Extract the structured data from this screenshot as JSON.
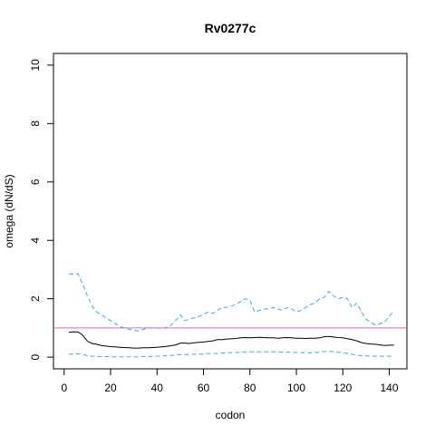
{
  "chart_data": {
    "type": "line",
    "title": "Rv0277c",
    "xlabel": "codon",
    "ylabel": "omega (dN/dS)",
    "xlim": [
      -4.6,
      147.6
    ],
    "ylim": [
      -0.4,
      10.4
    ],
    "x_ticks": [
      0,
      20,
      40,
      60,
      80,
      100,
      120,
      140
    ],
    "y_ticks": [
      0,
      2,
      4,
      6,
      8,
      10
    ],
    "reference_line": {
      "y": 1,
      "color": "#d46ad4"
    },
    "grid": false,
    "legend": "none",
    "series": [
      {
        "style": "solid",
        "color": "#000000",
        "x": [
          2,
          4,
          6,
          8,
          10,
          12,
          14,
          16,
          18,
          20,
          22,
          24,
          26,
          28,
          30,
          32,
          34,
          36,
          38,
          40,
          42,
          44,
          46,
          48,
          50,
          52,
          54,
          56,
          58,
          60,
          62,
          64,
          66,
          68,
          70,
          72,
          74,
          76,
          78,
          80,
          82,
          84,
          86,
          88,
          90,
          92,
          94,
          96,
          98,
          100,
          102,
          104,
          106,
          108,
          110,
          112,
          114,
          116,
          118,
          120,
          122,
          124,
          126,
          128,
          130,
          132,
          134,
          136,
          138,
          140,
          142
        ],
        "y": [
          0.85,
          0.87,
          0.86,
          0.75,
          0.55,
          0.47,
          0.44,
          0.4,
          0.38,
          0.36,
          0.35,
          0.34,
          0.33,
          0.32,
          0.31,
          0.31,
          0.32,
          0.32,
          0.33,
          0.34,
          0.35,
          0.37,
          0.39,
          0.42,
          0.48,
          0.48,
          0.47,
          0.49,
          0.51,
          0.52,
          0.54,
          0.56,
          0.6,
          0.6,
          0.62,
          0.63,
          0.64,
          0.66,
          0.67,
          0.66,
          0.67,
          0.68,
          0.67,
          0.66,
          0.66,
          0.65,
          0.66,
          0.67,
          0.66,
          0.65,
          0.65,
          0.64,
          0.65,
          0.65,
          0.66,
          0.7,
          0.71,
          0.69,
          0.67,
          0.66,
          0.63,
          0.6,
          0.56,
          0.5,
          0.47,
          0.45,
          0.44,
          0.42,
          0.4,
          0.41,
          0.41
        ]
      },
      {
        "style": "dashed",
        "color": "#3ea8e0",
        "x": [
          2,
          4,
          6,
          8,
          10,
          12,
          14,
          16,
          18,
          20,
          22,
          24,
          26,
          28,
          30,
          32,
          34,
          36,
          38,
          40,
          42,
          44,
          46,
          48,
          50,
          52,
          54,
          56,
          58,
          60,
          62,
          64,
          66,
          68,
          70,
          72,
          74,
          76,
          78,
          80,
          82,
          84,
          86,
          88,
          90,
          92,
          94,
          96,
          98,
          100,
          102,
          104,
          106,
          108,
          110,
          112,
          114,
          116,
          118,
          120,
          122,
          124,
          126,
          128,
          130,
          132,
          134,
          136,
          138,
          140,
          142
        ],
        "y": [
          2.85,
          2.85,
          2.85,
          2.5,
          2.1,
          1.75,
          1.55,
          1.45,
          1.35,
          1.25,
          1.15,
          1.05,
          1.0,
          0.95,
          0.92,
          0.9,
          0.95,
          1.0,
          1.0,
          1.0,
          0.98,
          1.02,
          1.1,
          1.25,
          1.45,
          1.25,
          1.3,
          1.35,
          1.4,
          1.45,
          1.55,
          1.5,
          1.6,
          1.7,
          1.7,
          1.75,
          1.8,
          1.9,
          2.0,
          1.95,
          1.55,
          1.6,
          1.65,
          1.65,
          1.7,
          1.65,
          1.6,
          1.7,
          1.65,
          1.55,
          1.6,
          1.7,
          1.8,
          1.85,
          2.0,
          2.05,
          2.25,
          2.1,
          2.0,
          2.05,
          2.0,
          1.7,
          1.85,
          1.55,
          1.3,
          1.2,
          1.1,
          1.15,
          1.2,
          1.4,
          1.6
        ]
      },
      {
        "style": "dashed",
        "color": "#3ea8e0",
        "x": [
          2,
          4,
          6,
          8,
          10,
          12,
          14,
          16,
          18,
          20,
          22,
          24,
          26,
          28,
          30,
          32,
          34,
          36,
          38,
          40,
          42,
          44,
          46,
          48,
          50,
          52,
          54,
          56,
          58,
          60,
          62,
          64,
          66,
          68,
          70,
          72,
          74,
          76,
          78,
          80,
          82,
          84,
          86,
          88,
          90,
          92,
          94,
          96,
          98,
          100,
          102,
          104,
          106,
          108,
          110,
          112,
          114,
          116,
          118,
          120,
          122,
          124,
          126,
          128,
          130,
          132,
          134,
          136,
          138,
          140,
          142
        ],
        "y": [
          0.1,
          0.11,
          0.12,
          0.1,
          0.05,
          0.03,
          0.03,
          0.02,
          0.02,
          0.02,
          0.01,
          0.01,
          0.01,
          0.01,
          0.01,
          0.01,
          0.02,
          0.02,
          0.03,
          0.03,
          0.04,
          0.05,
          0.06,
          0.07,
          0.09,
          0.09,
          0.09,
          0.1,
          0.1,
          0.11,
          0.12,
          0.12,
          0.13,
          0.14,
          0.15,
          0.16,
          0.16,
          0.17,
          0.18,
          0.18,
          0.18,
          0.18,
          0.18,
          0.18,
          0.18,
          0.18,
          0.17,
          0.17,
          0.17,
          0.16,
          0.16,
          0.15,
          0.15,
          0.16,
          0.17,
          0.19,
          0.2,
          0.19,
          0.17,
          0.15,
          0.13,
          0.1,
          0.07,
          0.05,
          0.04,
          0.03,
          0.03,
          0.03,
          0.03,
          0.03,
          0.03
        ]
      }
    ]
  }
}
